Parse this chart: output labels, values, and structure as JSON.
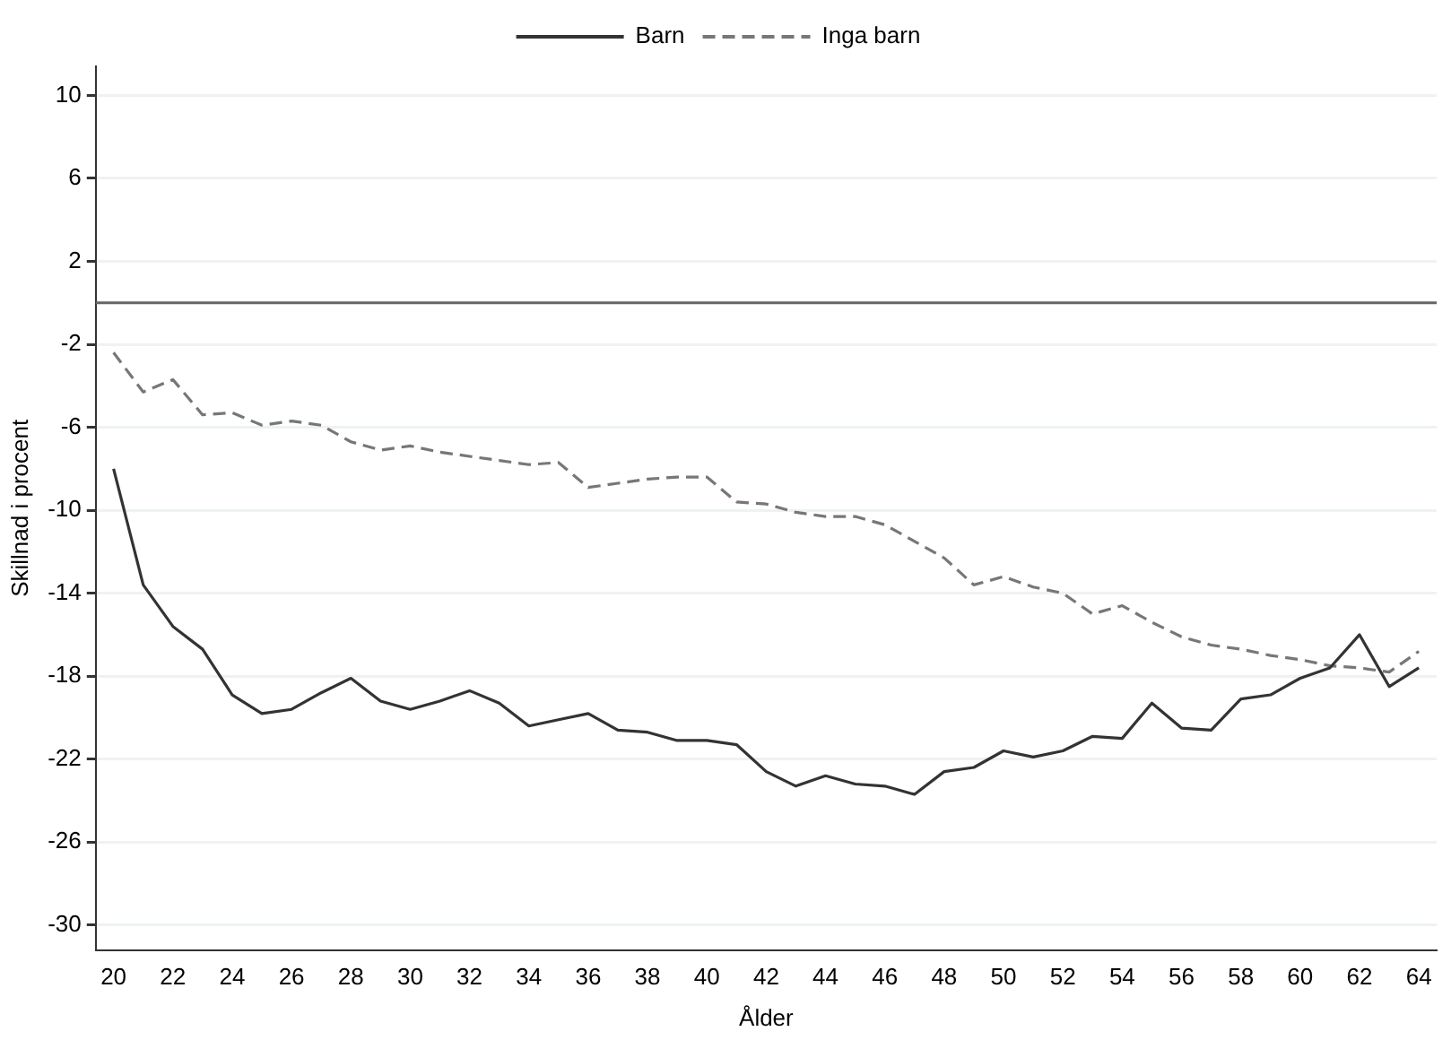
{
  "chart_data": {
    "type": "line",
    "xlabel": "Ålder",
    "ylabel": "Skillnad i procent",
    "x": [
      20,
      21,
      22,
      23,
      24,
      25,
      26,
      27,
      28,
      29,
      30,
      31,
      32,
      33,
      34,
      35,
      36,
      37,
      38,
      39,
      40,
      41,
      42,
      43,
      44,
      45,
      46,
      47,
      48,
      49,
      50,
      51,
      52,
      53,
      54,
      55,
      56,
      57,
      58,
      59,
      60,
      61,
      62,
      63,
      64
    ],
    "series": [
      {
        "name": "Barn",
        "color": "#333333",
        "line_style": "solid",
        "values": [
          -8.0,
          -13.6,
          -15.6,
          -16.7,
          -18.9,
          -19.8,
          -19.6,
          -18.8,
          -18.1,
          -19.2,
          -19.6,
          -19.2,
          -18.7,
          -19.3,
          -20.4,
          -20.1,
          -19.8,
          -20.6,
          -20.7,
          -21.1,
          -21.1,
          -21.3,
          -22.6,
          -23.3,
          -22.8,
          -23.2,
          -23.3,
          -23.7,
          -22.6,
          -22.4,
          -21.6,
          -21.9,
          -21.6,
          -20.9,
          -21.0,
          -19.3,
          -20.5,
          -20.6,
          -19.1,
          -18.9,
          -18.1,
          -17.6,
          -16.0,
          -18.5,
          -17.6
        ]
      },
      {
        "name": "Inga barn",
        "color": "#777777",
        "line_style": "dashed",
        "values": [
          -2.4,
          -4.3,
          -3.7,
          -5.4,
          -5.3,
          -5.9,
          -5.7,
          -5.9,
          -6.7,
          -7.1,
          -6.9,
          -7.2,
          -7.4,
          -7.6,
          -7.8,
          -7.7,
          -8.9,
          -8.7,
          -8.5,
          -8.4,
          -8.4,
          -9.6,
          -9.7,
          -10.1,
          -10.3,
          -10.3,
          -10.7,
          -11.5,
          -12.3,
          -13.6,
          -13.2,
          -13.7,
          -14.0,
          -15.0,
          -14.6,
          -15.4,
          -16.1,
          -16.5,
          -16.7,
          -17.0,
          -17.2,
          -17.5,
          -17.6,
          -17.8,
          -16.8
        ]
      }
    ],
    "xlim": [
      19.4,
      64.6
    ],
    "xticks": [
      20,
      22,
      24,
      26,
      28,
      30,
      32,
      34,
      36,
      38,
      40,
      42,
      44,
      46,
      48,
      50,
      52,
      54,
      56,
      58,
      60,
      62,
      64
    ],
    "ylim": [
      -31.2,
      11.4
    ],
    "yticks": [
      10,
      6,
      2,
      -2,
      -6,
      -10,
      -14,
      -18,
      -22,
      -26,
      -30
    ],
    "ref_lines": [
      {
        "axis": "y",
        "value": 0,
        "color": "#666666"
      }
    ],
    "grid": "y",
    "legend": "top",
    "marker": "none"
  }
}
